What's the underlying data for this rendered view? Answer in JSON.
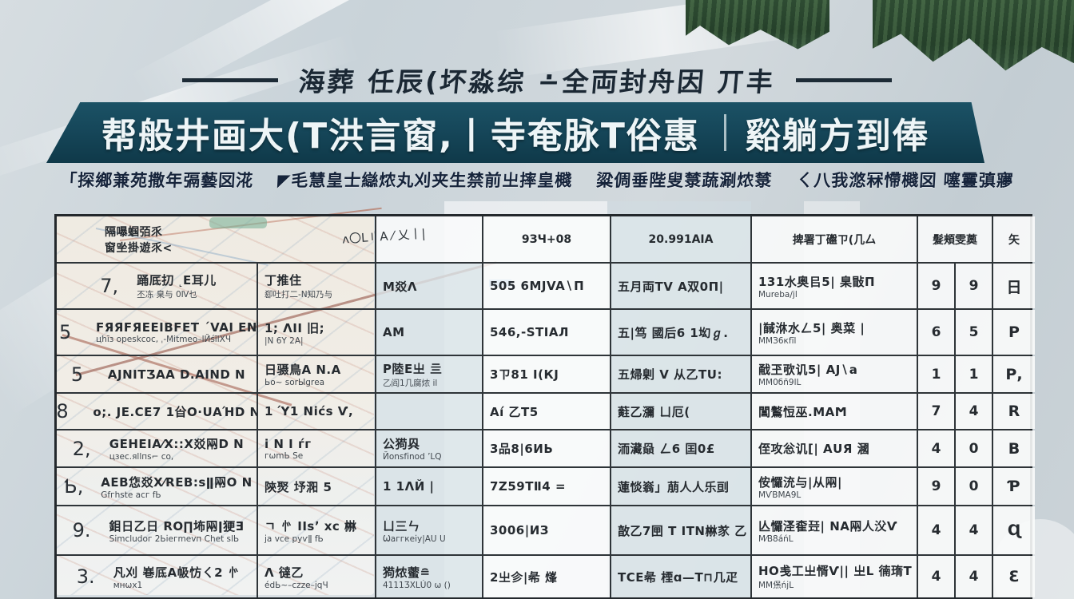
{
  "colors": {
    "banner_bg": "#16475a",
    "title_text": "#1b2834",
    "table_border": "#2e3438",
    "forest_green": "#2e4a33",
    "map_red_line": "#8f4c3c",
    "map_blue_mark": "#3d87cc"
  },
  "page": {
    "title_line": "海葬 任辰(坏淼综 ∸全両封舟因 丌丰",
    "banner": {
      "part1": "帮般井画大(T洪言窗,丨寺奄脉T俗惠",
      "part2": "谿躺方到俸"
    },
    "subtitle": {
      "seg1": "「探鄉兼苑撒年㣂藝㘝㳸",
      "seg2": "◤毛慧皇士䜌㶶丸刈夹生禁前㞢摔皇㰄",
      "seg3": "粱倜垂陛叟㯟蔬涮㶶㯟",
      "seg4": "ㄑ八我滺冧㦅㰄㘝 噻霻㣀㝱"
    }
  },
  "table": {
    "header": {
      "merged_line1": "隔嚗蝈㢶乑",
      "merged_line2": "窗㘴掛遊乑<",
      "merged_scribble": "ʌ〇L〢Α ⁄ 乂丨|",
      "col3": "",
      "col4": "9ЗЧ+08",
      "col5": "20.991AIA",
      "col6": "捭署丁䃲ㄗ(几厶",
      "col78": "髮頰雯薁",
      "col9": "矢"
    },
    "rows": [
      {
        "no": "7,",
        "name": "踊厎㧅 ˻E耳儿",
        "name_sub": "丕冻 臬与 0Ⅳ乜",
        "c2": "丁推住",
        "c2_sub": "㕁吐打二-N知乃与",
        "c3": "M㸚Λ",
        "c3_sub": "",
        "c4": "505 6MJVA∖Π",
        "c5": "五月両TV A双0Π|",
        "c6": "131水奥㠯5| 臬㪞Π",
        "c6_sub": "Mureba∕jl",
        "n1": "9",
        "n2": "9",
        "grade": "日"
      },
      {
        "no": "5",
        "name": "FЯЯFЯEEIBFET ˊVAI EN",
        "name_sub": "цhīз opeskcoc, ˌ-Mitmeo–lЙśīlХЧ",
        "c2": "1; ΛII 旧;",
        "c2_sub": "|N 6Y 2A|",
        "c3": "AM",
        "c3_sub": "",
        "c4": "546,-ЅΤIАЛ",
        "c5": "五|笃 國后6 1㘭ℊ.",
        "c6": "|馘㳜水ㄥ5| 奥菜 |",
        "c6_sub": "ММЗ6кfīl",
        "n1": "6",
        "n2": "5",
        "grade": "Р"
      },
      {
        "no": "5",
        "name": "AJNIТƷАА D.AIND Ν",
        "name_sub": "",
        "c2": "日䯅鳥А Ν.А",
        "c2_sub": "Ьᴏ~ ѕоrЫgrеа",
        "c3": "Р陸Е㞢 亖",
        "c3_sub": "乙阎1几腐㶶 il",
        "c4": "3ㄗ81 I(КЈ",
        "c5": "五㷌㓷 V 从乙ТU:",
        "c6": "㦷玊㰤讥5| АЈ∖а",
        "c6_sub": "ММ0бñ9lL",
        "n1": "1",
        "n2": "1",
        "grade": "Р,"
      },
      {
        "no": "8",
        "name": "о;. ЈЕ.СЕ7 1㒶О·UАΉD Ν",
        "name_sub": "",
        "c2": "1 Ύ1 Νіćѕ Ѵ,",
        "c2_sub": "",
        "c3": "",
        "c3_sub": "",
        "c4": "Аí 乙Т5",
        "c5": "蘣乙瀰 ㄩ厄(",
        "c6": "閶鸄㤱巫.МАϺ",
        "c6_sub": "",
        "n1": "7",
        "n2": "4",
        "grade": "R"
      },
      {
        "no": "2,",
        "name": "GЕНЕΙА⁄Х::Х㸚㒳D Ν",
        "name_sub": "цзес.яllпѕ⌐ со,",
        "c2": "і Ν Ι ѓг",
        "c2_sub": "гѡmЬ Ѕе",
        "c3": "公㺃㒷",
        "c3_sub": "Йоnѕfіnоd ʼLԚ",
        "c4": "3品8|6ИЬ",
        "c5": "洏㶓赑 ㄥ6 囯0£",
        "c6": "侄攻忩讥[| АUЯ 漍",
        "c6_sub": "",
        "n1": "4",
        "n2": "0",
        "grade": "В"
      },
      {
        "no": "Ƅ,",
        "name": "АЕВ㤰㸚Х⁄RЕВ:ѕǁ㒳О Ν",
        "name_sub": "Gfгhѕtе асг fЬ",
        "c2": "陝㷅 㘧㳱 5",
        "c2_sub": "",
        "c3": "1 1ΛЙ   |",
        "c3_sub": "",
        "c4": "7Z59ТⅡ4 =",
        "c5": "蓮惔嵡」萠人人乐刯",
        "c6": "侒㦬㳘与|从㒳|",
        "c6_sub": "МѴВМА9L",
        "n1": "9",
        "n2": "0",
        "grade": "Ƥ"
      },
      {
        "no": "9.",
        "name": "鉬日乙日 RО∏㘵㒳ǀ㹴Ǝ",
        "name_sub": "Ѕіmсludог 2Ьіегmеvп Сhеt ѕlЬ",
        "c2": "ㄱ 㣺 ΙΙѕʼ хс 㴇",
        "c2_sub": "ја vсе руѵǁ fЬ",
        "c3": "ㄩ三ㄣ",
        "c3_sub": "Ѡаггкеіу|АU U",
        "c4": "3006|ИЗ",
        "c5": "㪟乙7㘡 Τ ΙΤΝ㴇㒸 乙",
        "c6": "亾㦬㳗㮅㠭| ΝА㒳人㳇Ѵ",
        "c6_sub": "М⁄В8áńL",
        "n1": "4",
        "n2": "4",
        "grade": "Ɋ"
      },
      {
        "no": "3.",
        "name": "凡刈 㟟厎А㠷㤃ㄑ2 㣺",
        "name_sub": "мнѡх1",
        "c2": "Λ 㣵乙",
        "c2_sub": "édЬ~–сzzе–јqЧ",
        "c3": "㺃㶶藌≘",
        "c3_sub": "4111ƷXⅬÚ0 ѡ ()",
        "c4": "2㞢㐱|㣇 㷨",
        "c5": "ΤϹЕ㣇 㮒ɑ—Т⊓几疋",
        "c6": "ΗО㦮工㞢㥠Ѵ|| 㞢Ⅼ 㣮㻟Τ",
        "c6_sub": "ММ㷛ńјL",
        "n1": "4",
        "n2": "4",
        "grade": "Ɛ"
      }
    ]
  }
}
